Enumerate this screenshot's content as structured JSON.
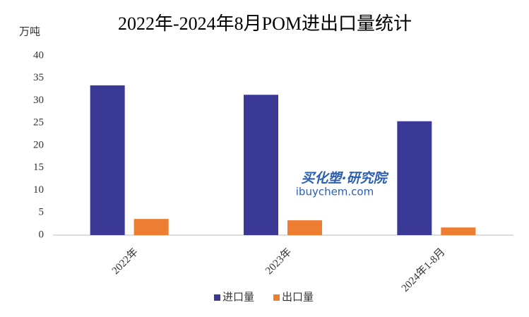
{
  "chart_data": {
    "type": "bar",
    "title": "2022年-2024年8月POM进出口量统计",
    "y_label": "万吨",
    "categories": [
      "2022年",
      "2023年",
      "2024年1-8月"
    ],
    "series": [
      {
        "name": "进口量",
        "color": "#3a3a96",
        "values": [
          33.4,
          31.3,
          25.4
        ]
      },
      {
        "name": "出口量",
        "color": "#ed7d31",
        "values": [
          3.6,
          3.3,
          1.7
        ]
      }
    ],
    "ylim": [
      0,
      40
    ],
    "yticks": [
      0,
      5,
      10,
      15,
      20,
      25,
      30,
      35,
      40
    ],
    "grid": false,
    "legend": "bottom",
    "annotations": [
      "买化塑·研究院",
      "ibuychem.com"
    ]
  }
}
